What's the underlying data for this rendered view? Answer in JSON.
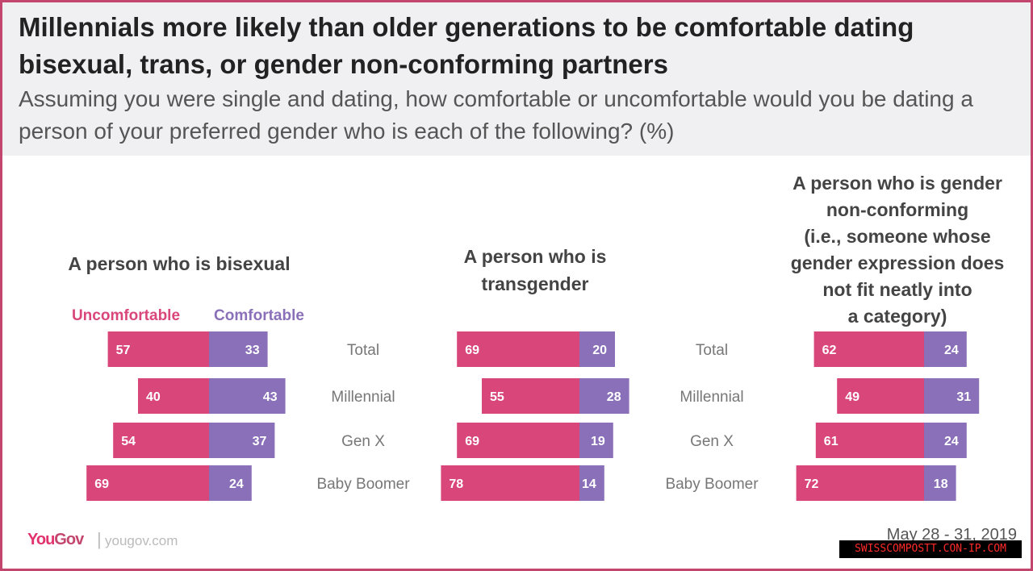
{
  "header": {
    "title": "Millennials more likely than older generations to be comfortable dating bisexual, trans, or gender non-conforming partners",
    "subtitle": "Assuming you were single and dating, how comfortable or uncomfortable would you be dating a person of your preferred gender who is each of the following? (%)"
  },
  "legend": {
    "uncomfortable": "Uncomfortable",
    "comfortable": "Comfortable"
  },
  "colors": {
    "uncomfortable": "#d9467a",
    "comfortable": "#8a70b8",
    "frame": "#c3466e",
    "header_bg": "#f0eff2"
  },
  "chart_data": [
    {
      "type": "bar",
      "orientation": "diverging-horizontal",
      "title_lines": [
        "A person who is bisexual"
      ],
      "categories": [
        "Total",
        "Millennial",
        "Gen X",
        "Baby Boomer"
      ],
      "series": [
        {
          "name": "Uncomfortable",
          "values": [
            57,
            40,
            54,
            69
          ]
        },
        {
          "name": "Comfortable",
          "values": [
            33,
            43,
            37,
            24
          ]
        }
      ],
      "unit": "%"
    },
    {
      "type": "bar",
      "orientation": "diverging-horizontal",
      "title_lines": [
        "A person who is",
        "transgender"
      ],
      "categories": [
        "Total",
        "Millennial",
        "Gen X",
        "Baby Boomer"
      ],
      "series": [
        {
          "name": "Uncomfortable",
          "values": [
            69,
            55,
            69,
            78
          ]
        },
        {
          "name": "Comfortable",
          "values": [
            20,
            28,
            19,
            14
          ]
        }
      ],
      "unit": "%"
    },
    {
      "type": "bar",
      "orientation": "diverging-horizontal",
      "title_lines": [
        "A person who is gender",
        "non-conforming",
        "(i.e., someone whose",
        "gender expression does",
        "not fit neatly into",
        "a category)"
      ],
      "categories": [
        "Total",
        "Millennial",
        "Gen X",
        "Baby Boomer"
      ],
      "series": [
        {
          "name": "Uncomfortable",
          "values": [
            62,
            49,
            61,
            72
          ]
        },
        {
          "name": "Comfortable",
          "values": [
            24,
            31,
            24,
            18
          ]
        }
      ],
      "unit": "%"
    }
  ],
  "footer": {
    "logo_you": "You",
    "logo_gov": "Gov",
    "separator": "|",
    "url": "yougov.com",
    "date": "May 28 - 31, 2019"
  },
  "watermark": "SWISSCOMPOSTT.CON-IP.COM"
}
